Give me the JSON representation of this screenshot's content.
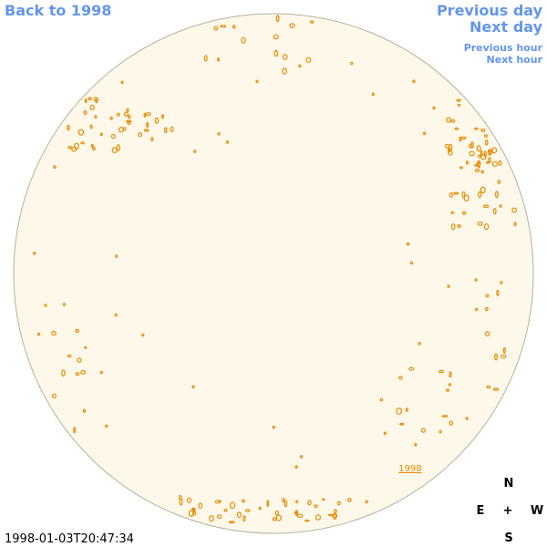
{
  "navigation": {
    "back": "Back to 1998",
    "previous_day": "Previous day",
    "next_day": "Next day",
    "previous_hour": "Previous hour",
    "next_hour": "Next hour"
  },
  "disk_label": "1998",
  "compass": {
    "north": "N",
    "east": "E",
    "center": "+",
    "west": "W",
    "south": "S"
  },
  "timestamp": "1998-01-03T20:47:34"
}
